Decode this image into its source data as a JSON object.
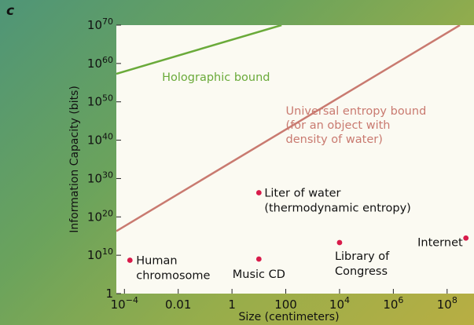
{
  "panel_letter": "c",
  "chart_data": {
    "type": "line",
    "xlabel": "Size (centimeters)",
    "ylabel": "Information Capacity (bits)",
    "x_scale": "log10",
    "y_scale": "log10",
    "xlim": [
      5e-05,
      1000000000
    ],
    "ylim": [
      1,
      1e+70
    ],
    "grid": false,
    "x_ticks": [
      {
        "value": 0.0001,
        "base": "10",
        "exp": "−4"
      },
      {
        "value": 0.01,
        "text": "0.01"
      },
      {
        "value": 1,
        "text": "1"
      },
      {
        "value": 100,
        "text": "100"
      },
      {
        "value": 10000,
        "base": "10",
        "exp": "4"
      },
      {
        "value": 1000000,
        "base": "10",
        "exp": "6"
      },
      {
        "value": 100000000,
        "base": "10",
        "exp": "8"
      }
    ],
    "y_ticks": [
      {
        "value": 1,
        "text": "1"
      },
      {
        "value": 10000000000.0,
        "base": "10",
        "exp": "10"
      },
      {
        "value": 1e+20,
        "base": "10",
        "exp": "20"
      },
      {
        "value": 1e+30,
        "base": "10",
        "exp": "30"
      },
      {
        "value": 1e+40,
        "base": "10",
        "exp": "40"
      },
      {
        "value": 1e+50,
        "base": "10",
        "exp": "50"
      },
      {
        "value": 1e+60,
        "base": "10",
        "exp": "60"
      },
      {
        "value": 1e+70,
        "base": "10",
        "exp": "70"
      }
    ],
    "series": [
      {
        "name": "Holographic bound",
        "color": "#6aaa3a",
        "points": [
          [
            5e-05,
            2e+57
          ],
          [
            70,
            1e+70
          ]
        ],
        "label_lines": [
          "Holographic bound"
        ],
        "label_anchor": [
          0.0025,
          3e+55
        ]
      },
      {
        "name": "Universal entropy bound",
        "color": "#c97a70",
        "points": [
          [
            5e-05,
            2e+16
          ],
          [
            300000000,
            1e+70
          ]
        ],
        "label_lines": [
          "Universal entropy bound",
          "(for an object with",
          "density of water)"
        ],
        "label_anchor": [
          100,
          5e+46
        ]
      }
    ],
    "points": [
      {
        "name": "Human chromosome",
        "x": 0.00016,
        "y": 500000000.0,
        "label_lines": [
          "Human",
          "chromosome"
        ],
        "align": "start"
      },
      {
        "name": "Music CD",
        "x": 10,
        "y": 1000000000.0,
        "label_lines": [
          "Music CD"
        ],
        "align": "middle"
      },
      {
        "name": "Liter of water (thermodynamic entropy)",
        "x": 10,
        "y": 2e+26,
        "label_lines": [
          "Liter of water",
          "(thermodynamic entropy)"
        ],
        "align": "start"
      },
      {
        "name": "Library of Congress",
        "x": 10000,
        "y": 20000000000000.0,
        "label_lines": [
          "Library of",
          "Congress"
        ],
        "align": "start"
      },
      {
        "name": "Internet",
        "x": 500000000,
        "y": 300000000000000.0,
        "label_lines": [
          "Internet"
        ],
        "align": "end"
      }
    ],
    "point_color": "#d81b4a",
    "frame_color": "#fbfaf2"
  }
}
